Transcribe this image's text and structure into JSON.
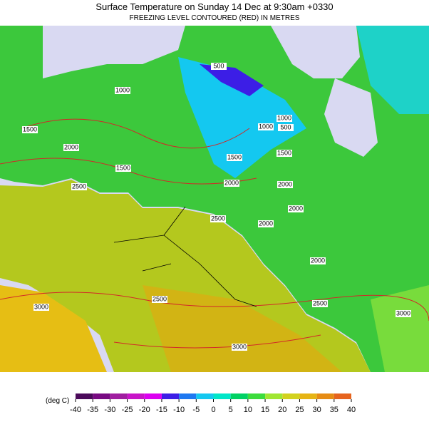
{
  "header": {
    "title": "Surface Temperature on Sunday 14 Dec at 9:30am +0330",
    "subtitle": "FREEZING LEVEL CONTOURED (RED) IN METRES"
  },
  "contour_labels": [
    "500",
    "1000",
    "1000",
    "1000",
    "500",
    "1500",
    "1500",
    "2000",
    "1500",
    "1500",
    "2500",
    "2000",
    "2000",
    "2000",
    "2500",
    "2000",
    "2000",
    "3000",
    "2500",
    "2500",
    "3000",
    "3000"
  ],
  "legend": {
    "unit": "(deg C)",
    "ticks": [
      "-40",
      "-35",
      "-30",
      "-25",
      "-20",
      "-15",
      "-10",
      "-5",
      "0",
      "5",
      "10",
      "15",
      "20",
      "25",
      "30",
      "35",
      "40"
    ],
    "colors": [
      "#4b0a5a",
      "#780a82",
      "#a01ea0",
      "#c814c8",
      "#dc00f0",
      "#3c1ee6",
      "#1e78f0",
      "#14c8f0",
      "#00e6c8",
      "#00d264",
      "#3cdc3c",
      "#a0e632",
      "#d2d21e",
      "#e6b414",
      "#e68c14",
      "#e6641e"
    ]
  }
}
